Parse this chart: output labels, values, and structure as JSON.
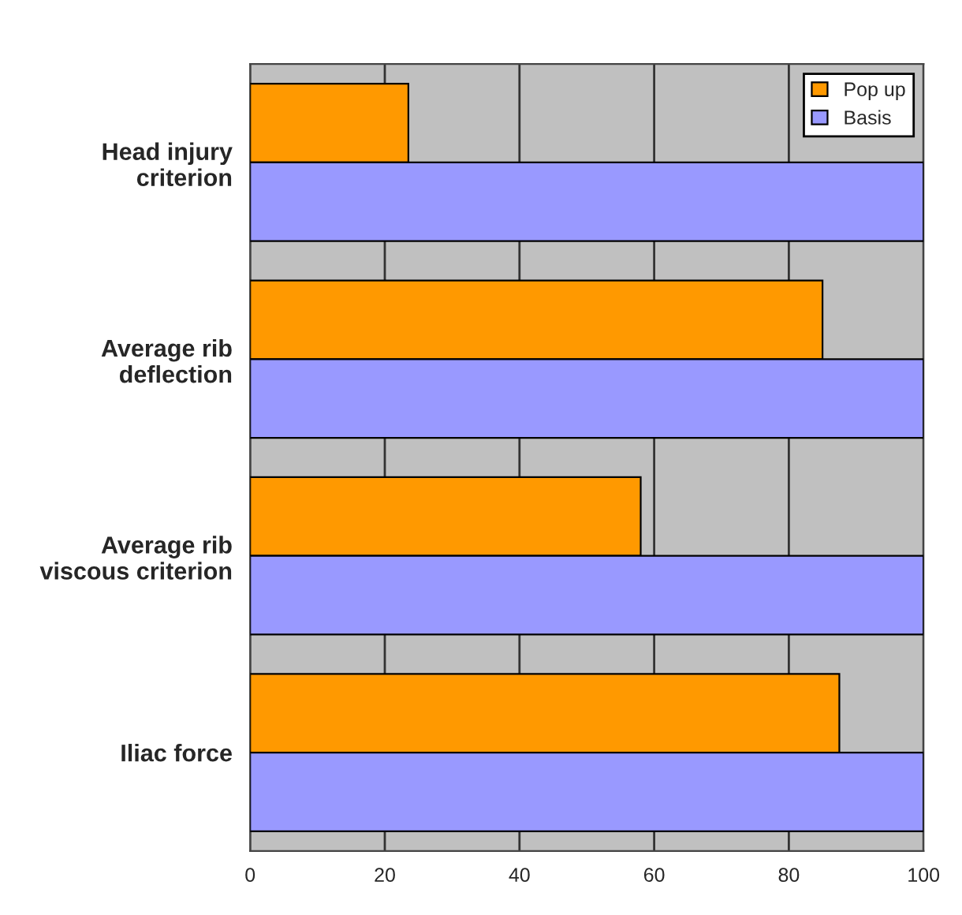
{
  "chart_data": {
    "type": "bar",
    "orientation": "horizontal",
    "categories": [
      "Head injury\ncriterion",
      "Average rib\ndeflection",
      "Average rib\nviscous criterion",
      "Iliac force"
    ],
    "series": [
      {
        "name": "Pop up",
        "color": "#ff9900",
        "values": [
          23.5,
          85,
          58,
          87.5
        ]
      },
      {
        "name": "Basis",
        "color": "#9999ff",
        "values": [
          100,
          100,
          100,
          100
        ]
      }
    ],
    "xlim": [
      0,
      100
    ],
    "xticks": [
      0,
      20,
      40,
      60,
      80,
      100
    ],
    "grid": "x",
    "legend": "top right"
  }
}
